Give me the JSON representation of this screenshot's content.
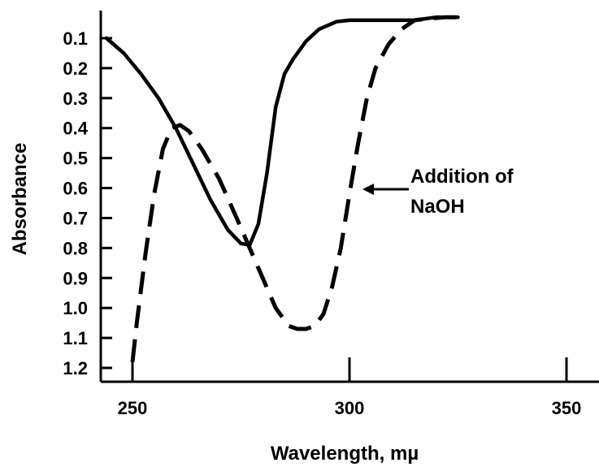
{
  "chart_data": {
    "type": "line",
    "title": "",
    "xlabel": "Wavelength, mµ",
    "ylabel": "Absorbance",
    "xlim": [
      244,
      328
    ],
    "ylim": [
      0,
      1.25
    ],
    "y_inverted": true,
    "grid": false,
    "x_ticks": [
      {
        "value": 250,
        "label": "250"
      },
      {
        "value": 300,
        "label": "300"
      },
      {
        "value": 350,
        "label": "350"
      }
    ],
    "y_ticks": [
      {
        "value": 0.1,
        "label": "0.1"
      },
      {
        "value": 0.2,
        "label": "0.2"
      },
      {
        "value": 0.3,
        "label": "0.3"
      },
      {
        "value": 0.4,
        "label": "0.4"
      },
      {
        "value": 0.5,
        "label": "0.5"
      },
      {
        "value": 0.6,
        "label": "0.6"
      },
      {
        "value": 0.7,
        "label": "0.7"
      },
      {
        "value": 0.8,
        "label": "0.8"
      },
      {
        "value": 0.9,
        "label": "0.9"
      },
      {
        "value": 1.0,
        "label": "1.0"
      },
      {
        "value": 1.1,
        "label": "1.1"
      },
      {
        "value": 1.2,
        "label": "1.2"
      }
    ],
    "series": [
      {
        "style": "solid",
        "color": "#000000",
        "x": [
          244,
          248,
          252,
          256,
          260,
          264,
          268,
          272,
          275,
          277,
          279,
          281,
          283,
          285,
          287,
          290,
          293,
          297,
          300,
          305,
          310,
          315,
          320,
          325
        ],
        "y": [
          0.1,
          0.15,
          0.22,
          0.3,
          0.4,
          0.52,
          0.64,
          0.74,
          0.785,
          0.79,
          0.72,
          0.55,
          0.33,
          0.22,
          0.17,
          0.11,
          0.07,
          0.045,
          0.04,
          0.04,
          0.04,
          0.04,
          0.03,
          0.03
        ]
      },
      {
        "style": "dashed",
        "color": "#000000",
        "x": [
          250,
          251,
          253,
          255,
          257,
          259,
          261,
          263,
          266,
          270,
          274,
          277,
          280,
          283,
          286,
          288,
          290,
          292,
          294,
          296,
          298,
          300,
          302,
          304,
          306,
          309,
          312,
          315,
          318,
          322,
          327
        ],
        "y": [
          1.18,
          1.05,
          0.82,
          0.62,
          0.47,
          0.4,
          0.39,
          0.41,
          0.47,
          0.57,
          0.7,
          0.8,
          0.9,
          1.0,
          1.06,
          1.07,
          1.07,
          1.06,
          1.02,
          0.93,
          0.8,
          0.62,
          0.45,
          0.3,
          0.2,
          0.12,
          0.07,
          0.04,
          0.035,
          0.03,
          0.03
        ]
      }
    ],
    "annotations": [
      {
        "lines": [
          "Addition of",
          "NaOH"
        ],
        "points_to": {
          "x": 302,
          "y": 0.6
        }
      }
    ]
  }
}
